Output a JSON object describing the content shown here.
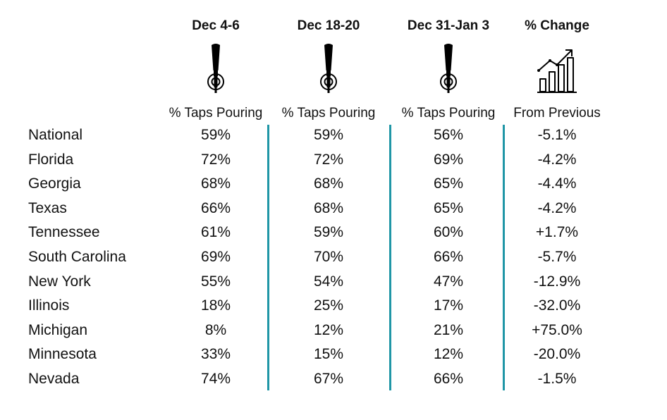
{
  "chart_data": {
    "type": "table",
    "columns": [
      {
        "header": "Dec 4-6",
        "subheader": "% Taps Pouring",
        "icon": "beer-tap-icon"
      },
      {
        "header": "Dec 18-20",
        "subheader": "% Taps Pouring",
        "icon": "beer-tap-icon"
      },
      {
        "header": "Dec 31-Jan 3",
        "subheader": "% Taps Pouring",
        "icon": "beer-tap-icon"
      },
      {
        "header": "% Change",
        "subheader": "From Previous",
        "icon": "growth-chart-icon"
      }
    ],
    "rows": [
      {
        "label": "National",
        "values": [
          "59%",
          "59%",
          "56%",
          "-5.1%"
        ]
      },
      {
        "label": "Florida",
        "values": [
          "72%",
          "72%",
          "69%",
          "-4.2%"
        ]
      },
      {
        "label": "Georgia",
        "values": [
          "68%",
          "68%",
          "65%",
          "-4.4%"
        ]
      },
      {
        "label": "Texas",
        "values": [
          "66%",
          "68%",
          "65%",
          "-4.2%"
        ]
      },
      {
        "label": "Tennessee",
        "values": [
          "61%",
          "59%",
          "60%",
          "+1.7%"
        ]
      },
      {
        "label": "South Carolina",
        "values": [
          "69%",
          "70%",
          "66%",
          "-5.7%"
        ]
      },
      {
        "label": "New York",
        "values": [
          "55%",
          "54%",
          "47%",
          "-12.9%"
        ]
      },
      {
        "label": "Illinois",
        "values": [
          "18%",
          "25%",
          "17%",
          "-32.0%"
        ]
      },
      {
        "label": "Michigan",
        "values": [
          "8%",
          "12%",
          "21%",
          "+75.0%"
        ]
      },
      {
        "label": "Minnesota",
        "values": [
          "33%",
          "15%",
          "12%",
          "-20.0%"
        ]
      },
      {
        "label": "Nevada",
        "values": [
          "74%",
          "67%",
          "66%",
          "-1.5%"
        ]
      }
    ],
    "divider_color": "#1f96a6"
  }
}
